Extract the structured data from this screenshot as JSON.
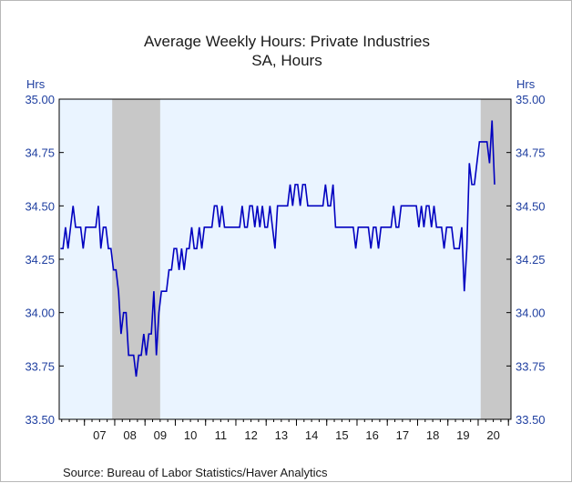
{
  "chart_data": {
    "type": "line",
    "title": "Average Weekly Hours: Private Industries",
    "subtitle": "SA, Hours",
    "left_unit": "Hrs",
    "right_unit": "Hrs",
    "source": "Source:  Bureau of Labor Statistics/Haver Analytics",
    "ylim": [
      33.5,
      35.0
    ],
    "yticks": [
      {
        "value": 33.5,
        "label": "33.50"
      },
      {
        "value": 33.75,
        "label": "33.75"
      },
      {
        "value": 34.0,
        "label": "34.00"
      },
      {
        "value": 34.25,
        "label": "34.25"
      },
      {
        "value": 34.5,
        "label": "34.50"
      },
      {
        "value": 34.75,
        "label": "34.75"
      },
      {
        "value": 35.0,
        "label": "35.00"
      }
    ],
    "x_start": "2006-03",
    "x_end": "2021-01",
    "xtick_labels": [
      "07",
      "08",
      "09",
      "10",
      "11",
      "12",
      "13",
      "14",
      "15",
      "16",
      "17",
      "18",
      "19",
      "20"
    ],
    "recessions": [
      {
        "start": "2007-12",
        "end": "2009-06"
      },
      {
        "start": "2020-02",
        "end": "2021-01"
      }
    ],
    "colors": {
      "line": "#0000c0",
      "plot_bg": "#eaf4ff",
      "recession": "#c8c8c8",
      "axis_text": "#1f3fa0"
    },
    "series": [
      {
        "start": "2006-03",
        "frequency": "monthly",
        "values": [
          34.3,
          34.3,
          34.4,
          34.3,
          34.4,
          34.5,
          34.4,
          34.4,
          34.4,
          34.3,
          34.4,
          34.4,
          34.4,
          34.4,
          34.4,
          34.5,
          34.3,
          34.4,
          34.4,
          34.3,
          34.3,
          34.2,
          34.2,
          34.1,
          33.9,
          34.0,
          34.0,
          33.8,
          33.8,
          33.8,
          33.7,
          33.8,
          33.8,
          33.9,
          33.8,
          33.9,
          33.9,
          34.1,
          33.8,
          34.0,
          34.1,
          34.1,
          34.1,
          34.2,
          34.2,
          34.3,
          34.3,
          34.2,
          34.3,
          34.2,
          34.3,
          34.3,
          34.4,
          34.3,
          34.3,
          34.4,
          34.3,
          34.4,
          34.4,
          34.4,
          34.4,
          34.5,
          34.5,
          34.4,
          34.5,
          34.4,
          34.4,
          34.4,
          34.4,
          34.4,
          34.4,
          34.4,
          34.5,
          34.4,
          34.4,
          34.5,
          34.5,
          34.4,
          34.5,
          34.4,
          34.5,
          34.4,
          34.4,
          34.5,
          34.4,
          34.3,
          34.5,
          34.5,
          34.5,
          34.5,
          34.5,
          34.6,
          34.5,
          34.6,
          34.6,
          34.5,
          34.6,
          34.6,
          34.5,
          34.5,
          34.5,
          34.5,
          34.5,
          34.5,
          34.5,
          34.6,
          34.5,
          34.5,
          34.6,
          34.4,
          34.4,
          34.4,
          34.4,
          34.4,
          34.4,
          34.4,
          34.4,
          34.3,
          34.4,
          34.4,
          34.4,
          34.4,
          34.4,
          34.3,
          34.4,
          34.4,
          34.3,
          34.4,
          34.4,
          34.4,
          34.4,
          34.4,
          34.5,
          34.4,
          34.4,
          34.5,
          34.5,
          34.5,
          34.5,
          34.5,
          34.5,
          34.5,
          34.4,
          34.5,
          34.4,
          34.5,
          34.5,
          34.4,
          34.5,
          34.4,
          34.4,
          34.4,
          34.3,
          34.4,
          34.4,
          34.4,
          34.3,
          34.3,
          34.3,
          34.4,
          34.1,
          34.3,
          34.7,
          34.6,
          34.6,
          34.7,
          34.8,
          34.8,
          34.8,
          34.8,
          34.7,
          34.9,
          34.6
        ]
      }
    ]
  }
}
